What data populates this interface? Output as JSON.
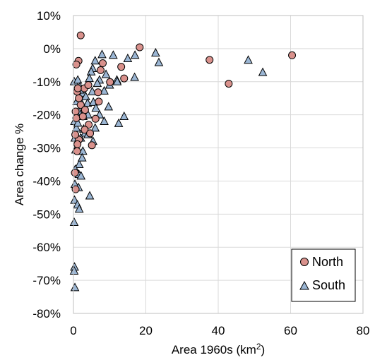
{
  "chart_data": {
    "type": "scatter",
    "xlabel": "Area 1960s (km",
    "xlabel_sup": "2",
    "xlabel_end": ")",
    "ylabel": "Area change %",
    "xlim": [
      0,
      80
    ],
    "ylim": [
      -80,
      10
    ],
    "x_ticks": [
      0,
      20,
      40,
      60,
      80
    ],
    "y_ticks": [
      10,
      0,
      -10,
      -20,
      -30,
      -40,
      -50,
      -60,
      -70,
      -80
    ],
    "x_tick_labels": [
      "0",
      "20",
      "40",
      "60",
      "80"
    ],
    "y_tick_labels": [
      "10%",
      "0%",
      "-10%",
      "-20%",
      "-30%",
      "-40%",
      "-50%",
      "-60%",
      "-70%",
      "-80%"
    ],
    "grid": true,
    "legend_position": "bottom-right",
    "series": [
      {
        "name": "North",
        "marker": "circle",
        "color": "#d9918c",
        "points": [
          [
            2.0,
            4.0
          ],
          [
            1.4,
            -3.7
          ],
          [
            0.8,
            -4.8
          ],
          [
            18.3,
            0.4
          ],
          [
            60.4,
            -2.0
          ],
          [
            37.6,
            -3.4
          ],
          [
            42.9,
            -10.6
          ],
          [
            13.2,
            -5.5
          ],
          [
            14.0,
            -9.0
          ],
          [
            10.1,
            -10.1
          ],
          [
            8.1,
            -4.4
          ],
          [
            7.5,
            -6.5
          ],
          [
            1.0,
            -13.0
          ],
          [
            1.5,
            -15.0
          ],
          [
            2.0,
            -17.0
          ],
          [
            3.0,
            -12.0
          ],
          [
            4.1,
            -11.0
          ],
          [
            3.2,
            -18.5
          ],
          [
            6.1,
            -21.2
          ],
          [
            4.2,
            -23.0
          ],
          [
            3.1,
            -24.5
          ],
          [
            4.6,
            -25.6
          ],
          [
            1.5,
            -27.5
          ],
          [
            1.1,
            -28.9
          ],
          [
            5.1,
            -29.2
          ],
          [
            0.6,
            -19.0
          ],
          [
            0.8,
            -21.0
          ],
          [
            0.5,
            -26.0
          ],
          [
            1.0,
            -31.0
          ],
          [
            0.4,
            -37.5
          ],
          [
            0.6,
            -42.5
          ],
          [
            1.2,
            -12.0
          ],
          [
            6.8,
            -13.2
          ],
          [
            7.0,
            -16.0
          ],
          [
            2.6,
            -20.5
          ]
        ]
      },
      {
        "name": "South",
        "marker": "triangle",
        "color": "#9bb6d4",
        "points": [
          [
            7.9,
            -1.8
          ],
          [
            11.0,
            -2.0
          ],
          [
            17.0,
            -2.0
          ],
          [
            22.7,
            -1.3
          ],
          [
            23.6,
            -4.2
          ],
          [
            48.3,
            -3.5
          ],
          [
            52.3,
            -7.2
          ],
          [
            15.0,
            -3.0
          ],
          [
            16.9,
            -8.7
          ],
          [
            12.0,
            -9.5
          ],
          [
            9.0,
            -7.8
          ],
          [
            6.0,
            -3.7
          ],
          [
            5.3,
            -6.0
          ],
          [
            4.9,
            -7.0
          ],
          [
            4.4,
            -9.0
          ],
          [
            7.2,
            -9.5
          ],
          [
            8.5,
            -12.8
          ],
          [
            9.7,
            -17.6
          ],
          [
            7.2,
            -20.0
          ],
          [
            8.5,
            -22.0
          ],
          [
            14.0,
            -20.5
          ],
          [
            12.5,
            -22.6
          ],
          [
            6.0,
            -24.0
          ],
          [
            5.4,
            -28.0
          ],
          [
            4.5,
            -44.5
          ],
          [
            0.2,
            -10.0
          ],
          [
            1.2,
            -9.5
          ],
          [
            1.8,
            -11.5
          ],
          [
            2.6,
            -13.5
          ],
          [
            3.4,
            -14.5
          ],
          [
            2.0,
            -16.0
          ],
          [
            3.9,
            -16.5
          ],
          [
            1.5,
            -19.0
          ],
          [
            2.7,
            -20.5
          ],
          [
            0.3,
            -22.0
          ],
          [
            0.8,
            -24.0
          ],
          [
            3.2,
            -25.5
          ],
          [
            0.4,
            -27.0
          ],
          [
            2.6,
            -31.0
          ],
          [
            1.6,
            -35.0
          ],
          [
            0.7,
            -37.0
          ],
          [
            1.5,
            -38.0
          ],
          [
            2.1,
            -38.5
          ],
          [
            0.4,
            -41.0
          ],
          [
            0.3,
            -45.8
          ],
          [
            1.1,
            -47.2
          ],
          [
            1.6,
            -48.5
          ],
          [
            0.2,
            -52.5
          ],
          [
            0.3,
            -66.0
          ],
          [
            0.2,
            -67.2
          ],
          [
            0.4,
            -72.2
          ],
          [
            5.5,
            -16.2
          ],
          [
            6.6,
            -10.5
          ],
          [
            10.0,
            -11.0
          ],
          [
            12.1,
            -10.0
          ],
          [
            4.0,
            -20.0
          ],
          [
            5.2,
            -13.0
          ],
          [
            2.0,
            -27.0
          ],
          [
            1.0,
            -20.0
          ],
          [
            0.6,
            -30.6
          ],
          [
            2.4,
            -33.0
          ],
          [
            1.8,
            -12.5
          ],
          [
            4.0,
            -26.0
          ],
          [
            0.9,
            -16.0
          ],
          [
            3.0,
            -18.2
          ],
          [
            1.2,
            -22.5
          ],
          [
            0.5,
            -36.5
          ],
          [
            2.8,
            -24.3
          ],
          [
            1.4,
            -42.0
          ],
          [
            6.2,
            -18.0
          ]
        ]
      }
    ]
  }
}
